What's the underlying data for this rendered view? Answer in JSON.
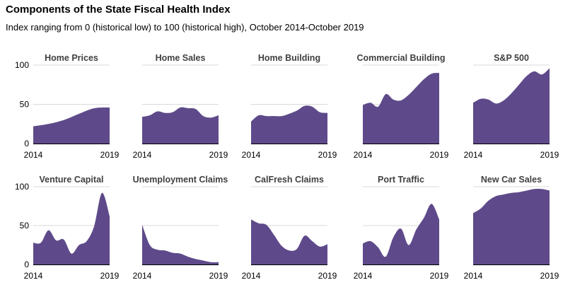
{
  "header": {
    "title": "Components of the State Fiscal Health Index",
    "subtitle": "Index ranging from 0 (historical low) to 100 (historical high), October 2014-October 2019"
  },
  "style": {
    "fill": "#5e4a8a",
    "gridline": "#d9d9d9",
    "axis": "#000000"
  },
  "chart_data": [
    {
      "type": "area",
      "title": "Home Prices",
      "x": [
        2014,
        2015,
        2016,
        2017,
        2018,
        2019
      ],
      "values": [
        22,
        25,
        30,
        38,
        45,
        46
      ],
      "ylim": [
        0,
        100
      ],
      "yticks": [
        "0",
        "50",
        "100"
      ],
      "xticks": [
        "2014",
        "2019"
      ]
    },
    {
      "type": "area",
      "title": "Home Sales",
      "x": [
        2014,
        2014.5,
        2015,
        2015.5,
        2016,
        2016.5,
        2017,
        2017.5,
        2018,
        2018.5,
        2019
      ],
      "values": [
        34,
        36,
        41,
        39,
        40,
        46,
        45,
        44,
        35,
        33,
        36
      ],
      "ylim": [
        0,
        100
      ],
      "yticks": [],
      "xticks": [
        "2014",
        "2019"
      ]
    },
    {
      "type": "area",
      "title": "Home Building",
      "x": [
        2014,
        2014.5,
        2015,
        2015.5,
        2016,
        2016.5,
        2017,
        2017.5,
        2018,
        2018.5,
        2019
      ],
      "values": [
        28,
        36,
        35,
        35,
        35,
        38,
        42,
        48,
        47,
        40,
        39
      ],
      "ylim": [
        0,
        100
      ],
      "yticks": [],
      "xticks": [
        "2014",
        "2019"
      ]
    },
    {
      "type": "area",
      "title": "Commercial Building",
      "x": [
        2014,
        2014.5,
        2015,
        2015.5,
        2016,
        2016.5,
        2017,
        2017.5,
        2018,
        2018.5,
        2019
      ],
      "values": [
        49,
        52,
        47,
        63,
        56,
        55,
        62,
        72,
        82,
        89,
        90
      ],
      "ylim": [
        0,
        100
      ],
      "yticks": [],
      "xticks": [
        "2014",
        "2019"
      ]
    },
    {
      "type": "area",
      "title": "S&P 500",
      "x": [
        2014,
        2014.5,
        2015,
        2015.5,
        2016,
        2016.5,
        2017,
        2017.5,
        2018,
        2018.5,
        2019
      ],
      "values": [
        52,
        57,
        56,
        51,
        55,
        64,
        75,
        86,
        92,
        88,
        96
      ],
      "ylim": [
        0,
        100
      ],
      "yticks": [],
      "xticks": [
        "2014",
        "2019"
      ]
    },
    {
      "type": "area",
      "title": "Venture Capital",
      "x": [
        2014,
        2014.5,
        2015,
        2015.5,
        2016,
        2016.5,
        2017,
        2017.5,
        2018,
        2018.5,
        2019
      ],
      "values": [
        28,
        28,
        44,
        31,
        32,
        14,
        25,
        30,
        50,
        92,
        62
      ],
      "ylim": [
        0,
        100
      ],
      "yticks": [
        "0",
        "50",
        "100"
      ],
      "xticks": [
        "2014",
        "2019"
      ]
    },
    {
      "type": "area",
      "title": "Unemployment Claims",
      "x": [
        2014,
        2014.5,
        2015,
        2015.5,
        2016,
        2016.5,
        2017,
        2017.5,
        2018,
        2018.5,
        2019
      ],
      "values": [
        51,
        25,
        19,
        18,
        15,
        14,
        10,
        7,
        5,
        3,
        3
      ],
      "ylim": [
        0,
        100
      ],
      "yticks": [],
      "xticks": [
        "2014",
        "2019"
      ]
    },
    {
      "type": "area",
      "title": "CalFresh Claims",
      "x": [
        2014,
        2014.5,
        2015,
        2015.5,
        2016,
        2016.5,
        2017,
        2017.5,
        2018,
        2018.5,
        2019
      ],
      "values": [
        58,
        53,
        51,
        38,
        24,
        18,
        20,
        37,
        30,
        23,
        26
      ],
      "ylim": [
        0,
        100
      ],
      "yticks": [],
      "xticks": [
        "2014",
        "2019"
      ]
    },
    {
      "type": "area",
      "title": "Port Traffic",
      "x": [
        2014,
        2014.5,
        2015,
        2015.5,
        2016,
        2016.5,
        2017,
        2017.5,
        2018,
        2018.5,
        2019
      ],
      "values": [
        27,
        30,
        22,
        10,
        35,
        46,
        25,
        45,
        60,
        78,
        58
      ],
      "ylim": [
        0,
        100
      ],
      "yticks": [],
      "xticks": [
        "2014",
        "2019"
      ]
    },
    {
      "type": "area",
      "title": "New Car Sales",
      "x": [
        2014,
        2014.5,
        2015,
        2015.5,
        2016,
        2016.5,
        2017,
        2017.5,
        2018,
        2018.5,
        2019
      ],
      "values": [
        66,
        72,
        82,
        88,
        90,
        92,
        93,
        95,
        97,
        97,
        95
      ],
      "ylim": [
        0,
        100
      ],
      "yticks": [],
      "xticks": [
        "2014",
        "2019"
      ]
    }
  ]
}
